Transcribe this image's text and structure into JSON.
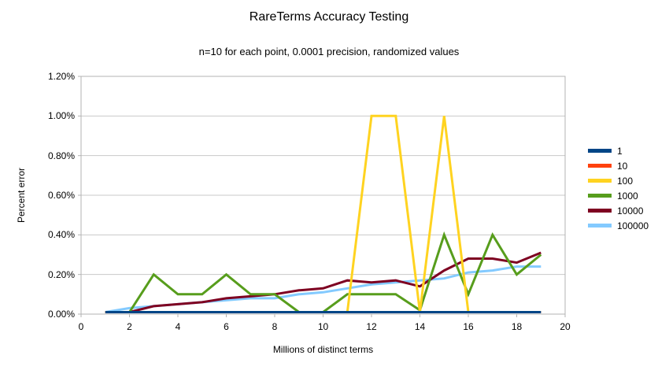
{
  "chart": {
    "title": "RareTerms Accuracy Testing",
    "subtitle": "n=10 for each point, 0.0001 precision, randomized values",
    "x_axis_title": "Millions of distinct terms",
    "y_axis_title": "Percent error"
  },
  "chart_data": {
    "type": "line",
    "title": "RareTerms Accuracy Testing",
    "subtitle": "n=10 for each point, 0.0001 precision, randomized values",
    "xlabel": "Millions of distinct terms",
    "ylabel": "Percent error",
    "xlim": [
      0,
      20
    ],
    "ylim": [
      0,
      1.2
    ],
    "y_unit": "percent",
    "grid": "horizontal",
    "legend_position": "right",
    "x_ticks": [
      0,
      2,
      4,
      6,
      8,
      10,
      12,
      14,
      16,
      18,
      20
    ],
    "y_ticks": [
      {
        "value": 0.0,
        "label": "0.00%"
      },
      {
        "value": 0.2,
        "label": "0.20%"
      },
      {
        "value": 0.4,
        "label": "0.40%"
      },
      {
        "value": 0.6,
        "label": "0.60%"
      },
      {
        "value": 0.8,
        "label": "0.80%"
      },
      {
        "value": 1.0,
        "label": "1.00%"
      },
      {
        "value": 1.2,
        "label": "1.20%"
      }
    ],
    "x": [
      1,
      2,
      3,
      4,
      5,
      6,
      7,
      8,
      9,
      10,
      11,
      12,
      13,
      14,
      15,
      16,
      17,
      18,
      19
    ],
    "series": [
      {
        "name": "1",
        "color": "#004586",
        "values": [
          0.01,
          0.01,
          0.01,
          0.01,
          0.01,
          0.01,
          0.01,
          0.01,
          0.01,
          0.01,
          0.01,
          0.01,
          0.01,
          0.01,
          0.01,
          0.01,
          0.01,
          0.01,
          0.01
        ]
      },
      {
        "name": "10",
        "color": "#FF420E",
        "values": [
          0.01,
          0.01,
          0.01,
          0.01,
          0.01,
          0.01,
          0.01,
          0.01,
          0.01,
          0.01,
          0.01,
          0.01,
          0.01,
          0.01,
          0.01,
          0.01,
          0.01,
          0.01,
          0.01
        ]
      },
      {
        "name": "100",
        "color": "#FFD320",
        "values": [
          0.01,
          0.01,
          0.01,
          0.01,
          0.01,
          0.01,
          0.01,
          0.01,
          0.01,
          0.01,
          0.01,
          1.0,
          1.0,
          0.01,
          1.0,
          0.01,
          0.01,
          0.01,
          0.01
        ]
      },
      {
        "name": "1000",
        "color": "#579D1C",
        "values": [
          0.01,
          0.01,
          0.2,
          0.1,
          0.1,
          0.2,
          0.1,
          0.1,
          0.01,
          0.01,
          0.1,
          0.1,
          0.1,
          0.02,
          0.4,
          0.1,
          0.4,
          0.2,
          0.3
        ]
      },
      {
        "name": "10000",
        "color": "#7E0021",
        "values": [
          0.01,
          0.01,
          0.04,
          0.05,
          0.06,
          0.08,
          0.09,
          0.1,
          0.12,
          0.13,
          0.17,
          0.16,
          0.17,
          0.14,
          0.22,
          0.28,
          0.28,
          0.26,
          0.31
        ]
      },
      {
        "name": "100000",
        "color": "#83CAFF",
        "values": [
          0.01,
          0.03,
          0.04,
          0.05,
          0.06,
          0.07,
          0.08,
          0.08,
          0.1,
          0.11,
          0.13,
          0.15,
          0.16,
          0.17,
          0.18,
          0.21,
          0.22,
          0.24,
          0.24
        ]
      }
    ],
    "draw_order": [
      "100000",
      "10000",
      "1000",
      "100",
      "10",
      "1"
    ]
  },
  "legend": {
    "items": [
      {
        "label": "1",
        "color": "#004586"
      },
      {
        "label": "10",
        "color": "#FF420E"
      },
      {
        "label": "100",
        "color": "#FFD320"
      },
      {
        "label": "1000",
        "color": "#579D1C"
      },
      {
        "label": "10000",
        "color": "#7E0021"
      },
      {
        "label": "100000",
        "color": "#83CAFF"
      }
    ]
  },
  "colors": {
    "background": "#ffffff",
    "gridline": "#c8c8c8",
    "axis": "#b3b3b3",
    "text": "#000000"
  }
}
